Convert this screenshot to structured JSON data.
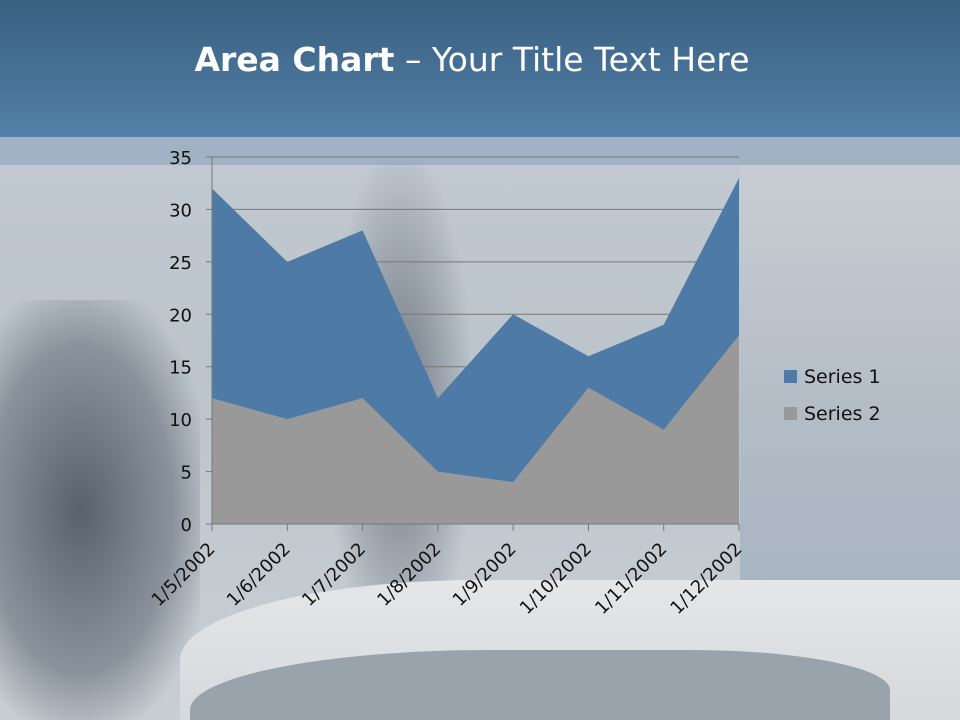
{
  "slide": {
    "title_bold": "Area Chart",
    "title_rest": " – Your Title Text Here"
  },
  "chart_data": {
    "type": "area",
    "categories": [
      "1/5/2002",
      "1/6/2002",
      "1/7/2002",
      "1/8/2002",
      "1/9/2002",
      "1/10/2002",
      "1/11/2002",
      "1/12/2002"
    ],
    "series": [
      {
        "name": "Series 1",
        "color": "#4e7ba5",
        "values": [
          32,
          25,
          28,
          12,
          20,
          16,
          19,
          33
        ]
      },
      {
        "name": "Series 2",
        "color": "#999999",
        "values": [
          12,
          10,
          12,
          5,
          4,
          13,
          9,
          18
        ]
      }
    ],
    "ylim": [
      0,
      35
    ],
    "yticks": [
      "0",
      "5",
      "10",
      "15",
      "20",
      "25",
      "30",
      "35"
    ],
    "grid": true,
    "legend": "right"
  }
}
